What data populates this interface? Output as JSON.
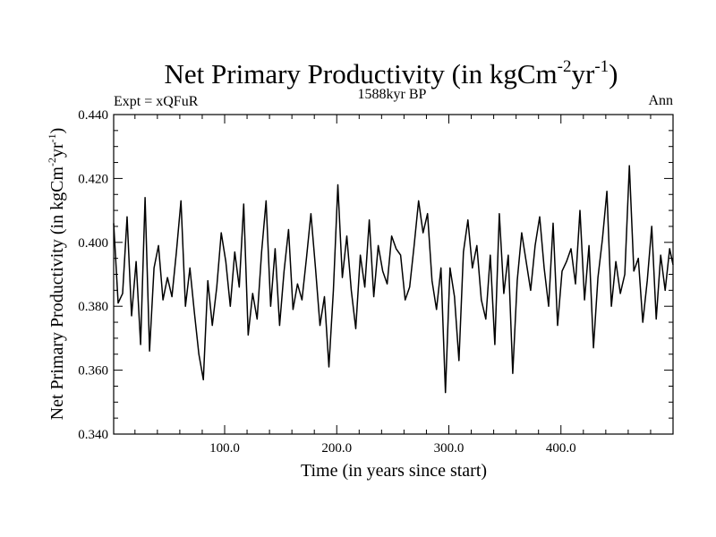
{
  "chart_data": {
    "type": "line",
    "title": {
      "main": "Net Primary Productivity (in kgCm",
      "sup1": "-2",
      "mid": "yr",
      "sup2": "-1",
      "end": ")"
    },
    "subtitle_left": "Expt = xQFuR",
    "subtitle_center": "1588kyr BP",
    "subtitle_right": "Ann",
    "xlabel": "Time (in years since start)",
    "ylabel": {
      "main": "Net Primary Productivity (in kgCm",
      "sup1": "-2",
      "mid": "yr",
      "sup2": "-1",
      "end": ")"
    },
    "xlim": [
      1,
      500
    ],
    "ylim": [
      0.34,
      0.44
    ],
    "xticks": [
      100,
      200,
      300,
      400
    ],
    "xtick_labels": [
      "100.0",
      "200.0",
      "300.0",
      "400.0"
    ],
    "yticks": [
      0.34,
      0.36,
      0.38,
      0.4,
      0.42,
      0.44
    ],
    "ytick_labels": [
      "0.340",
      "0.360",
      "0.380",
      "0.400",
      "0.420",
      "0.440"
    ],
    "series": [
      {
        "name": "Ann",
        "x": [
          1,
          5,
          9,
          13,
          17,
          21,
          25,
          29,
          33,
          37,
          41,
          45,
          49,
          53,
          57,
          61,
          65,
          69,
          73,
          77,
          81,
          85,
          89,
          93,
          97,
          101,
          105,
          109,
          113,
          117,
          121,
          125,
          129,
          133,
          137,
          141,
          145,
          149,
          153,
          157,
          161,
          165,
          169,
          173,
          177,
          181,
          185,
          189,
          193,
          197,
          201,
          205,
          209,
          213,
          217,
          221,
          225,
          229,
          233,
          237,
          241,
          245,
          249,
          253,
          257,
          261,
          265,
          269,
          273,
          277,
          281,
          285,
          289,
          293,
          297,
          301,
          305,
          309,
          313,
          317,
          321,
          325,
          329,
          333,
          337,
          341,
          345,
          349,
          353,
          357,
          361,
          365,
          369,
          373,
          377,
          381,
          385,
          389,
          393,
          397,
          401,
          405,
          409,
          413,
          417,
          421,
          425,
          429,
          433,
          437,
          441,
          445,
          449,
          453,
          457,
          461,
          465,
          469,
          473,
          477,
          481,
          485,
          489,
          493,
          497,
          500
        ],
        "values": [
          0.406,
          0.381,
          0.384,
          0.408,
          0.377,
          0.394,
          0.368,
          0.414,
          0.366,
          0.392,
          0.399,
          0.382,
          0.389,
          0.383,
          0.397,
          0.413,
          0.38,
          0.392,
          0.378,
          0.365,
          0.357,
          0.388,
          0.374,
          0.386,
          0.403,
          0.394,
          0.38,
          0.397,
          0.386,
          0.412,
          0.371,
          0.384,
          0.376,
          0.397,
          0.413,
          0.38,
          0.398,
          0.374,
          0.391,
          0.404,
          0.379,
          0.387,
          0.382,
          0.395,
          0.409,
          0.392,
          0.374,
          0.383,
          0.361,
          0.385,
          0.418,
          0.389,
          0.402,
          0.385,
          0.373,
          0.396,
          0.386,
          0.407,
          0.383,
          0.399,
          0.391,
          0.387,
          0.402,
          0.398,
          0.396,
          0.382,
          0.386,
          0.399,
          0.413,
          0.403,
          0.409,
          0.388,
          0.379,
          0.392,
          0.353,
          0.392,
          0.383,
          0.363,
          0.397,
          0.407,
          0.392,
          0.399,
          0.382,
          0.376,
          0.396,
          0.368,
          0.409,
          0.384,
          0.396,
          0.359,
          0.388,
          0.403,
          0.394,
          0.385,
          0.399,
          0.408,
          0.392,
          0.38,
          0.406,
          0.374,
          0.391,
          0.394,
          0.398,
          0.387,
          0.41,
          0.382,
          0.399,
          0.367,
          0.389,
          0.401,
          0.416,
          0.38,
          0.394,
          0.384,
          0.39,
          0.424,
          0.391,
          0.395,
          0.375,
          0.388,
          0.405,
          0.376,
          0.396,
          0.385,
          0.398,
          0.393
        ]
      }
    ]
  }
}
